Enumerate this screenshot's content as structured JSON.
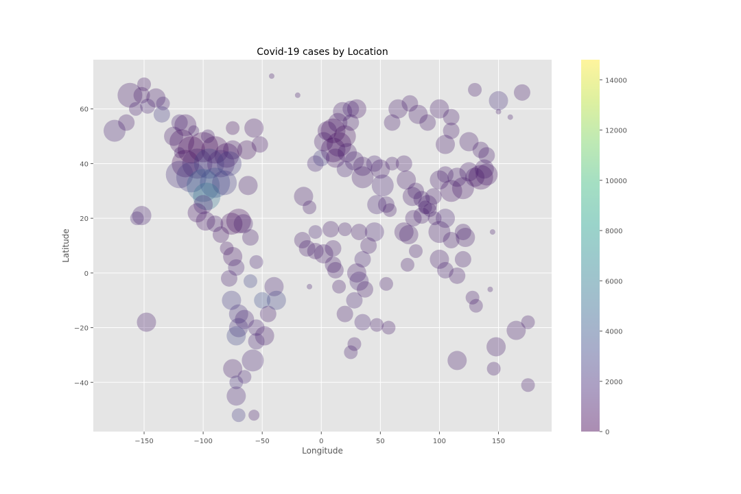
{
  "chart_data": {
    "type": "scatter",
    "title": "Covid-19 cases by Location",
    "xlabel": "Longitude",
    "ylabel": "Latitude",
    "xlim": [
      -193,
      195
    ],
    "ylim": [
      -58,
      78
    ],
    "xticks": [
      -150,
      -100,
      -50,
      0,
      50,
      100,
      150
    ],
    "yticks": [
      -40,
      -20,
      0,
      20,
      40,
      60
    ],
    "xtick_labels": [
      "−150",
      "−100",
      "−50",
      "0",
      "50",
      "100",
      "150"
    ],
    "ytick_labels": [
      "−40",
      "−20",
      "0",
      "20",
      "40",
      "60"
    ],
    "grid": true,
    "style": "ggplot",
    "marker_alpha": 0.3,
    "colorbar": {
      "colormap": "viridis",
      "range": [
        0,
        14800
      ],
      "ticks": [
        0,
        2000,
        4000,
        6000,
        8000,
        10000,
        12000,
        14000
      ],
      "tick_labels": [
        "0",
        "2000",
        "4000",
        "6000",
        "8000",
        "10000",
        "12000",
        "14000"
      ],
      "colors": [
        "#440154",
        "#482878",
        "#3e4989",
        "#31688e",
        "#26828e",
        "#1f9e89",
        "#35b779",
        "#6ece58",
        "#b5de2b",
        "#fde725"
      ]
    },
    "colors": {
      "plot_bg": "#e5e5e5",
      "grid": "#ffffff",
      "text": "#555555",
      "title": "#000000"
    },
    "points": [
      [
        -150,
        69,
        10,
        900
      ],
      [
        -162,
        65,
        18,
        1000
      ],
      [
        -157,
        60,
        10,
        1200
      ],
      [
        -152,
        65,
        12,
        900
      ],
      [
        -147,
        61,
        11,
        1500
      ],
      [
        -140,
        64,
        14,
        1000
      ],
      [
        -135,
        58,
        12,
        2500
      ],
      [
        -134,
        62,
        10,
        1500
      ],
      [
        -120,
        55,
        12,
        1500
      ],
      [
        -115,
        54,
        16,
        800
      ],
      [
        -125,
        50,
        14,
        1000
      ],
      [
        -175,
        52,
        16,
        1500
      ],
      [
        -165,
        55,
        12,
        1000
      ],
      [
        -152,
        21,
        14,
        1200
      ],
      [
        -156,
        20,
        10,
        1500
      ],
      [
        -148,
        -18,
        14,
        1000
      ],
      [
        -118,
        48,
        18,
        500
      ],
      [
        -110,
        45,
        20,
        300
      ],
      [
        -100,
        46,
        22,
        200
      ],
      [
        -90,
        45,
        20,
        400
      ],
      [
        -80,
        43,
        18,
        600
      ],
      [
        -75,
        45,
        14,
        800
      ],
      [
        -115,
        40,
        20,
        300
      ],
      [
        -105,
        40,
        22,
        1000
      ],
      [
        -95,
        40,
        22,
        3000
      ],
      [
        -85,
        40,
        20,
        1500
      ],
      [
        -78,
        40,
        18,
        2500
      ],
      [
        -120,
        36,
        20,
        2000
      ],
      [
        -110,
        35,
        22,
        2500
      ],
      [
        -100,
        32,
        24,
        4500
      ],
      [
        -90,
        33,
        22,
        3500
      ],
      [
        -82,
        33,
        18,
        2500
      ],
      [
        -97,
        28,
        20,
        5500
      ],
      [
        -100,
        25,
        14,
        1500
      ],
      [
        -105,
        22,
        14,
        800
      ],
      [
        -98,
        19,
        14,
        800
      ],
      [
        -90,
        18,
        12,
        1000
      ],
      [
        -85,
        14,
        12,
        800
      ],
      [
        -80,
        9,
        10,
        800
      ],
      [
        -76,
        18,
        16,
        500
      ],
      [
        -70,
        19,
        18,
        400
      ],
      [
        -66,
        18,
        14,
        1000
      ],
      [
        -60,
        13,
        12,
        1000
      ],
      [
        -75,
        6,
        14,
        800
      ],
      [
        -72,
        2,
        12,
        1500
      ],
      [
        -78,
        -2,
        12,
        1200
      ],
      [
        -76,
        -10,
        14,
        2500
      ],
      [
        -70,
        -15,
        14,
        2000
      ],
      [
        -65,
        -17,
        14,
        1500
      ],
      [
        -60,
        -3,
        10,
        3000
      ],
      [
        -55,
        4,
        10,
        1500
      ],
      [
        -50,
        -10,
        12,
        3500
      ],
      [
        -45,
        -15,
        12,
        1000
      ],
      [
        -40,
        -5,
        14,
        1500
      ],
      [
        -38,
        -10,
        14,
        3000
      ],
      [
        -55,
        -20,
        12,
        1500
      ],
      [
        -48,
        -23,
        14,
        1000
      ],
      [
        -55,
        -25,
        12,
        1500
      ],
      [
        -58,
        -32,
        16,
        1500
      ],
      [
        -70,
        -20,
        14,
        2000
      ],
      [
        -72,
        -23,
        14,
        3000
      ],
      [
        -75,
        -35,
        14,
        1000
      ],
      [
        -72,
        -45,
        14,
        1500
      ],
      [
        -70,
        -52,
        10,
        2500
      ],
      [
        -57,
        -52,
        8,
        1000
      ],
      [
        -72,
        -40,
        10,
        2000
      ],
      [
        -65,
        -38,
        10,
        1500
      ],
      [
        -62,
        32,
        14,
        1000
      ],
      [
        -57,
        53,
        14,
        800
      ],
      [
        -52,
        47,
        12,
        800
      ],
      [
        -63,
        45,
        14,
        600
      ],
      [
        -75,
        53,
        10,
        600
      ],
      [
        -42,
        72,
        4,
        1000
      ],
      [
        -20,
        65,
        4,
        1000
      ],
      [
        -15,
        28,
        14,
        1000
      ],
      [
        -10,
        24,
        10,
        1000
      ],
      [
        -5,
        40,
        12,
        1500
      ],
      [
        0,
        42,
        12,
        2500
      ],
      [
        2,
        48,
        14,
        1000
      ],
      [
        5,
        52,
        14,
        800
      ],
      [
        10,
        52,
        18,
        500
      ],
      [
        14,
        55,
        14,
        800
      ],
      [
        18,
        59,
        14,
        1000
      ],
      [
        25,
        60,
        12,
        1500
      ],
      [
        30,
        60,
        14,
        800
      ],
      [
        25,
        55,
        12,
        1000
      ],
      [
        20,
        50,
        16,
        600
      ],
      [
        15,
        47,
        18,
        500
      ],
      [
        10,
        45,
        18,
        700
      ],
      [
        22,
        44,
        14,
        1000
      ],
      [
        28,
        41,
        14,
        1200
      ],
      [
        12,
        42,
        14,
        800
      ],
      [
        20,
        38,
        12,
        1500
      ],
      [
        35,
        39,
        14,
        1000
      ],
      [
        35,
        35,
        16,
        1000
      ],
      [
        45,
        40,
        12,
        1500
      ],
      [
        50,
        38,
        14,
        1000
      ],
      [
        52,
        32,
        16,
        1500
      ],
      [
        47,
        25,
        14,
        1500
      ],
      [
        55,
        25,
        12,
        1200
      ],
      [
        58,
        23,
        10,
        1000
      ],
      [
        45,
        15,
        14,
        1500
      ],
      [
        40,
        10,
        12,
        1000
      ],
      [
        35,
        5,
        12,
        1500
      ],
      [
        30,
        0,
        14,
        1000
      ],
      [
        32,
        -3,
        14,
        1500
      ],
      [
        37,
        -6,
        12,
        1000
      ],
      [
        28,
        -10,
        12,
        1500
      ],
      [
        20,
        -15,
        12,
        1000
      ],
      [
        35,
        -18,
        12,
        1500
      ],
      [
        28,
        -26,
        10,
        1000
      ],
      [
        25,
        -29,
        10,
        1200
      ],
      [
        47,
        -19,
        10,
        1000
      ],
      [
        57,
        -20,
        10,
        1000
      ],
      [
        55,
        -4,
        10,
        1000
      ],
      [
        10,
        9,
        12,
        1000
      ],
      [
        2,
        7,
        14,
        1000
      ],
      [
        -5,
        8,
        12,
        1000
      ],
      [
        -12,
        9,
        12,
        1000
      ],
      [
        -16,
        12,
        12,
        1000
      ],
      [
        -5,
        15,
        10,
        1500
      ],
      [
        8,
        16,
        12,
        1000
      ],
      [
        20,
        16,
        10,
        1000
      ],
      [
        32,
        15,
        12,
        1000
      ],
      [
        10,
        3,
        12,
        1000
      ],
      [
        15,
        -5,
        10,
        1000
      ],
      [
        12,
        1,
        12,
        1000
      ],
      [
        -10,
        -5,
        4,
        1200
      ],
      [
        60,
        55,
        12,
        1000
      ],
      [
        65,
        60,
        14,
        1000
      ],
      [
        75,
        62,
        12,
        1000
      ],
      [
        82,
        58,
        14,
        1000
      ],
      [
        90,
        55,
        12,
        1000
      ],
      [
        100,
        60,
        14,
        1000
      ],
      [
        110,
        57,
        12,
        1000
      ],
      [
        130,
        67,
        10,
        1000
      ],
      [
        150,
        63,
        14,
        2000
      ],
      [
        170,
        66,
        12,
        1000
      ],
      [
        60,
        40,
        10,
        1000
      ],
      [
        70,
        40,
        12,
        1000
      ],
      [
        72,
        34,
        14,
        1000
      ],
      [
        77,
        28,
        14,
        1000
      ],
      [
        80,
        30,
        12,
        1000
      ],
      [
        85,
        27,
        12,
        1000
      ],
      [
        90,
        25,
        14,
        1000
      ],
      [
        95,
        28,
        12,
        1000
      ],
      [
        100,
        34,
        14,
        1000
      ],
      [
        105,
        36,
        12,
        1000
      ],
      [
        110,
        30,
        16,
        800
      ],
      [
        115,
        35,
        14,
        1000
      ],
      [
        120,
        31,
        16,
        800
      ],
      [
        125,
        37,
        14,
        1000
      ],
      [
        130,
        35,
        14,
        1000
      ],
      [
        135,
        35,
        18,
        500
      ],
      [
        140,
        36,
        16,
        800
      ],
      [
        138,
        38,
        14,
        1000
      ],
      [
        105,
        20,
        14,
        1500
      ],
      [
        100,
        15,
        16,
        1000
      ],
      [
        110,
        12,
        12,
        1000
      ],
      [
        120,
        15,
        12,
        1000
      ],
      [
        122,
        13,
        14,
        1000
      ],
      [
        100,
        5,
        14,
        1000
      ],
      [
        105,
        1,
        12,
        1200
      ],
      [
        115,
        -1,
        12,
        1000
      ],
      [
        120,
        5,
        12,
        1000
      ],
      [
        128,
        -9,
        10,
        1000
      ],
      [
        131,
        -12,
        10,
        1000
      ],
      [
        115,
        -32,
        14,
        1000
      ],
      [
        148,
        -27,
        14,
        1000
      ],
      [
        146,
        -35,
        10,
        1000
      ],
      [
        165,
        -21,
        14,
        1000
      ],
      [
        175,
        -18,
        10,
        1000
      ],
      [
        175,
        -41,
        10,
        1000
      ],
      [
        105,
        47,
        14,
        1000
      ],
      [
        110,
        52,
        12,
        1000
      ],
      [
        125,
        48,
        14,
        1000
      ],
      [
        135,
        45,
        12,
        1000
      ],
      [
        140,
        43,
        12,
        1000
      ],
      [
        150,
        59,
        4,
        1000
      ],
      [
        160,
        57,
        4,
        1000
      ],
      [
        70,
        15,
        14,
        1000
      ],
      [
        74,
        14,
        14,
        1000
      ],
      [
        80,
        8,
        10,
        1000
      ],
      [
        73,
        3,
        10,
        1000
      ],
      [
        78,
        20,
        12,
        1000
      ],
      [
        85,
        21,
        12,
        1000
      ],
      [
        88,
        24,
        10,
        1000
      ],
      [
        92,
        23,
        10,
        1000
      ],
      [
        96,
        20,
        10,
        1000
      ],
      [
        145,
        15,
        4,
        1000
      ],
      [
        143,
        -6,
        4,
        1000
      ],
      [
        -120,
        44,
        8,
        1000
      ],
      [
        -108,
        52,
        8,
        1000
      ],
      [
        -96,
        50,
        10,
        1000
      ]
    ]
  }
}
